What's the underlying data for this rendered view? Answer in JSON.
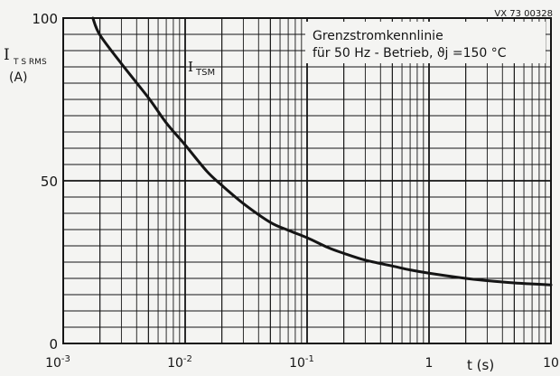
{
  "chart_data": {
    "type": "line",
    "x_scale": "log",
    "y_scale": "linear",
    "xlim": [
      0.001,
      10
    ],
    "ylim": [
      0,
      100
    ],
    "grid": true,
    "reference_code": "VX 73 00328",
    "ylabel": {
      "symbol": "I",
      "subscript": "T S RMS",
      "unit": "(A)"
    },
    "xlabel": "t (s)",
    "annotation": {
      "lines": [
        "Grenzstromkennlinie",
        "für 50 Hz - Betrieb, ϑj =150 °C"
      ]
    },
    "series": [
      {
        "name": "ITSM",
        "label_symbol": "I",
        "label_subscript": "TSM",
        "color": "#151515",
        "x": [
          0.00175,
          0.002,
          0.003,
          0.005,
          0.007,
          0.01,
          0.015,
          0.02,
          0.03,
          0.05,
          0.07,
          0.1,
          0.15,
          0.2,
          0.3,
          0.5,
          0.7,
          1,
          2,
          3,
          5,
          7,
          10
        ],
        "values": [
          100,
          94.8,
          86,
          75.5,
          67.8,
          61,
          53,
          48.6,
          43,
          37.2,
          34.8,
          32.5,
          29.4,
          27.7,
          25.6,
          23.8,
          22.6,
          21.6,
          20,
          19.3,
          18.6,
          18.3,
          18
        ]
      }
    ],
    "y_ticks": [
      {
        "value": 0,
        "label": "0"
      },
      {
        "value": 50,
        "label": "50"
      },
      {
        "value": 100,
        "label": "100"
      }
    ],
    "x_ticks": [
      {
        "value": 0.001,
        "base": "10",
        "exp": "-3"
      },
      {
        "value": 0.01,
        "base": "10",
        "exp": "-2"
      },
      {
        "value": 0.1,
        "base": "10",
        "exp": "-1"
      },
      {
        "value": 1,
        "base": "1",
        "exp": ""
      },
      {
        "value": 10,
        "base": "10",
        "exp": ""
      }
    ]
  }
}
